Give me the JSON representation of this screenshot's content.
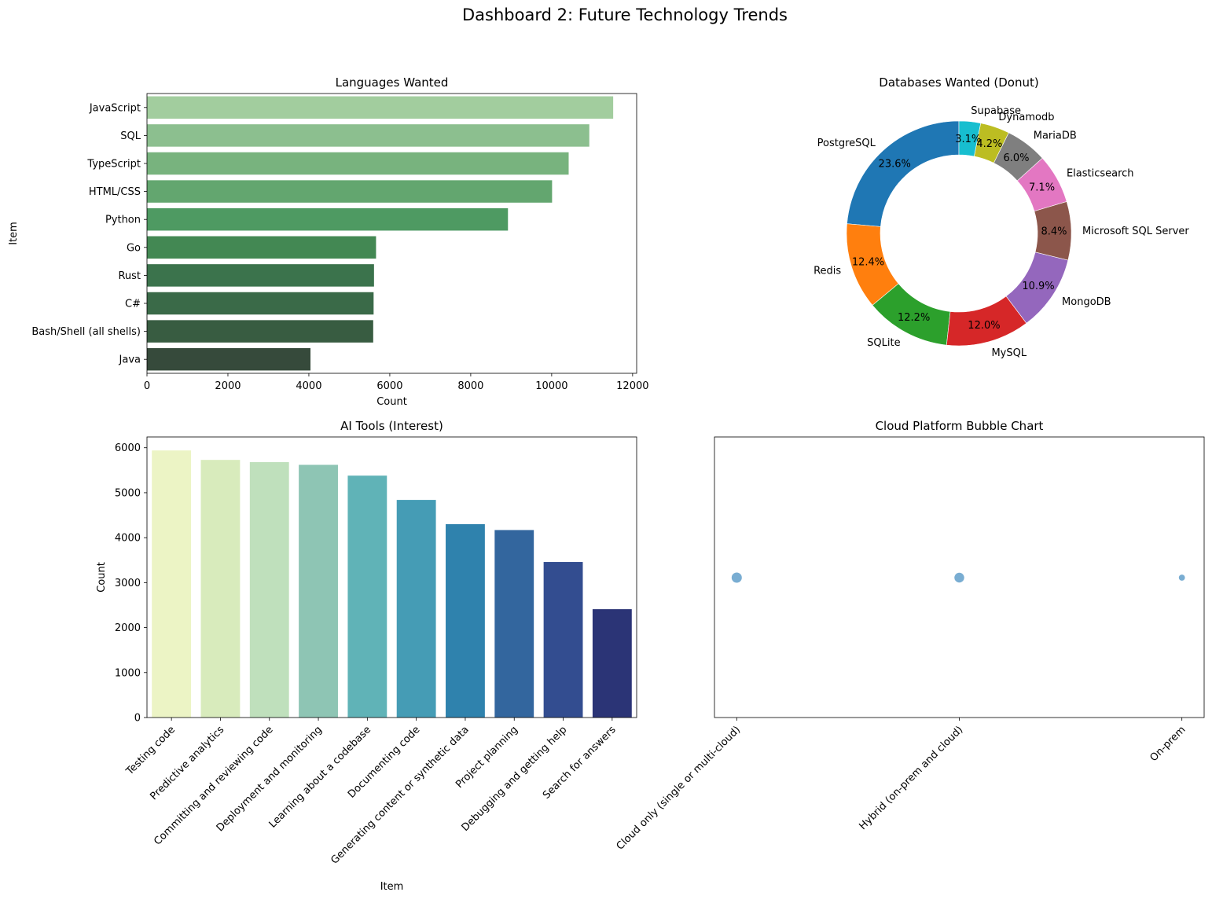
{
  "title": "Dashboard 2: Future Technology Trends",
  "chart_data": [
    {
      "type": "bar",
      "orientation": "horizontal",
      "title": "Languages Wanted",
      "xlabel": "Count",
      "ylabel": "Item",
      "categories": [
        "JavaScript",
        "SQL",
        "TypeScript",
        "HTML/CSS",
        "Python",
        "Go",
        "Rust",
        "C#",
        "Bash/Shell (all shells)",
        "Java"
      ],
      "values": [
        11520,
        10930,
        10420,
        10010,
        8920,
        5660,
        5610,
        5600,
        5590,
        4040
      ],
      "xlim": [
        0,
        12100
      ],
      "xticks": [
        0,
        2000,
        4000,
        6000,
        8000,
        10000,
        12000
      ],
      "colors": [
        "#a2cd9e",
        "#8cbf8f",
        "#78b37e",
        "#63a66f",
        "#4e9a62",
        "#438853",
        "#3b734c",
        "#3a6a48",
        "#385c41",
        "#364a3b"
      ]
    },
    {
      "type": "pie",
      "variant": "donut",
      "title": "Databases Wanted (Donut)",
      "labels": [
        "PostgreSQL",
        "Redis",
        "SQLite",
        "MySQL",
        "MongoDB",
        "Microsoft SQL Server",
        "Elasticsearch",
        "MariaDB",
        "Dynamodb",
        "Supabase"
      ],
      "values": [
        23.6,
        12.4,
        12.2,
        12.0,
        10.9,
        8.4,
        7.1,
        6.0,
        4.2,
        3.1
      ],
      "pct_labels": [
        "23.6%",
        "12.4%",
        "12.2%",
        "12.0%",
        "10.9%",
        "8.4%",
        "7.1%",
        "6.0%",
        "4.2%",
        "3.1%"
      ],
      "colors": [
        "#1f77b4",
        "#ff7f0e",
        "#2ca02c",
        "#d62728",
        "#9467bd",
        "#8c564b",
        "#e377c2",
        "#7f7f7f",
        "#bcbd22",
        "#17becf"
      ],
      "start_angle": 90,
      "direction": "counterclockwise"
    },
    {
      "type": "bar",
      "orientation": "vertical",
      "title": "AI Tools (Interest)",
      "xlabel": "Item",
      "ylabel": "Count",
      "categories": [
        "Testing code",
        "Predictive analytics",
        "Committing and reviewing code",
        "Deployment and monitoring",
        "Learning about a codebase",
        "Documenting code",
        "Generating content or synthetic data",
        "Project planning",
        "Debugging and getting help",
        "Search for answers"
      ],
      "values": [
        5940,
        5730,
        5680,
        5620,
        5380,
        4840,
        4300,
        4170,
        3460,
        2410
      ],
      "ylim": [
        0,
        6240
      ],
      "yticks": [
        0,
        1000,
        2000,
        3000,
        4000,
        5000,
        6000
      ],
      "colors": [
        "#ecf4c5",
        "#d8ebbc",
        "#bfe0bc",
        "#8ec5b4",
        "#60b3b7",
        "#459cb5",
        "#2f82ad",
        "#33669e",
        "#334d90",
        "#2b3476"
      ]
    },
    {
      "type": "scatter",
      "variant": "bubble",
      "title": "Cloud Platform Bubble Chart",
      "categories": [
        "Cloud only (single or multi-cloud)",
        "Hybrid (on-prem and cloud)",
        "On-prem"
      ],
      "y": [
        0,
        0,
        0
      ],
      "relative_size": [
        1.0,
        0.88,
        0.18
      ],
      "color": "#1f77b4",
      "alpha": 0.6,
      "yticks": "hidden"
    }
  ]
}
